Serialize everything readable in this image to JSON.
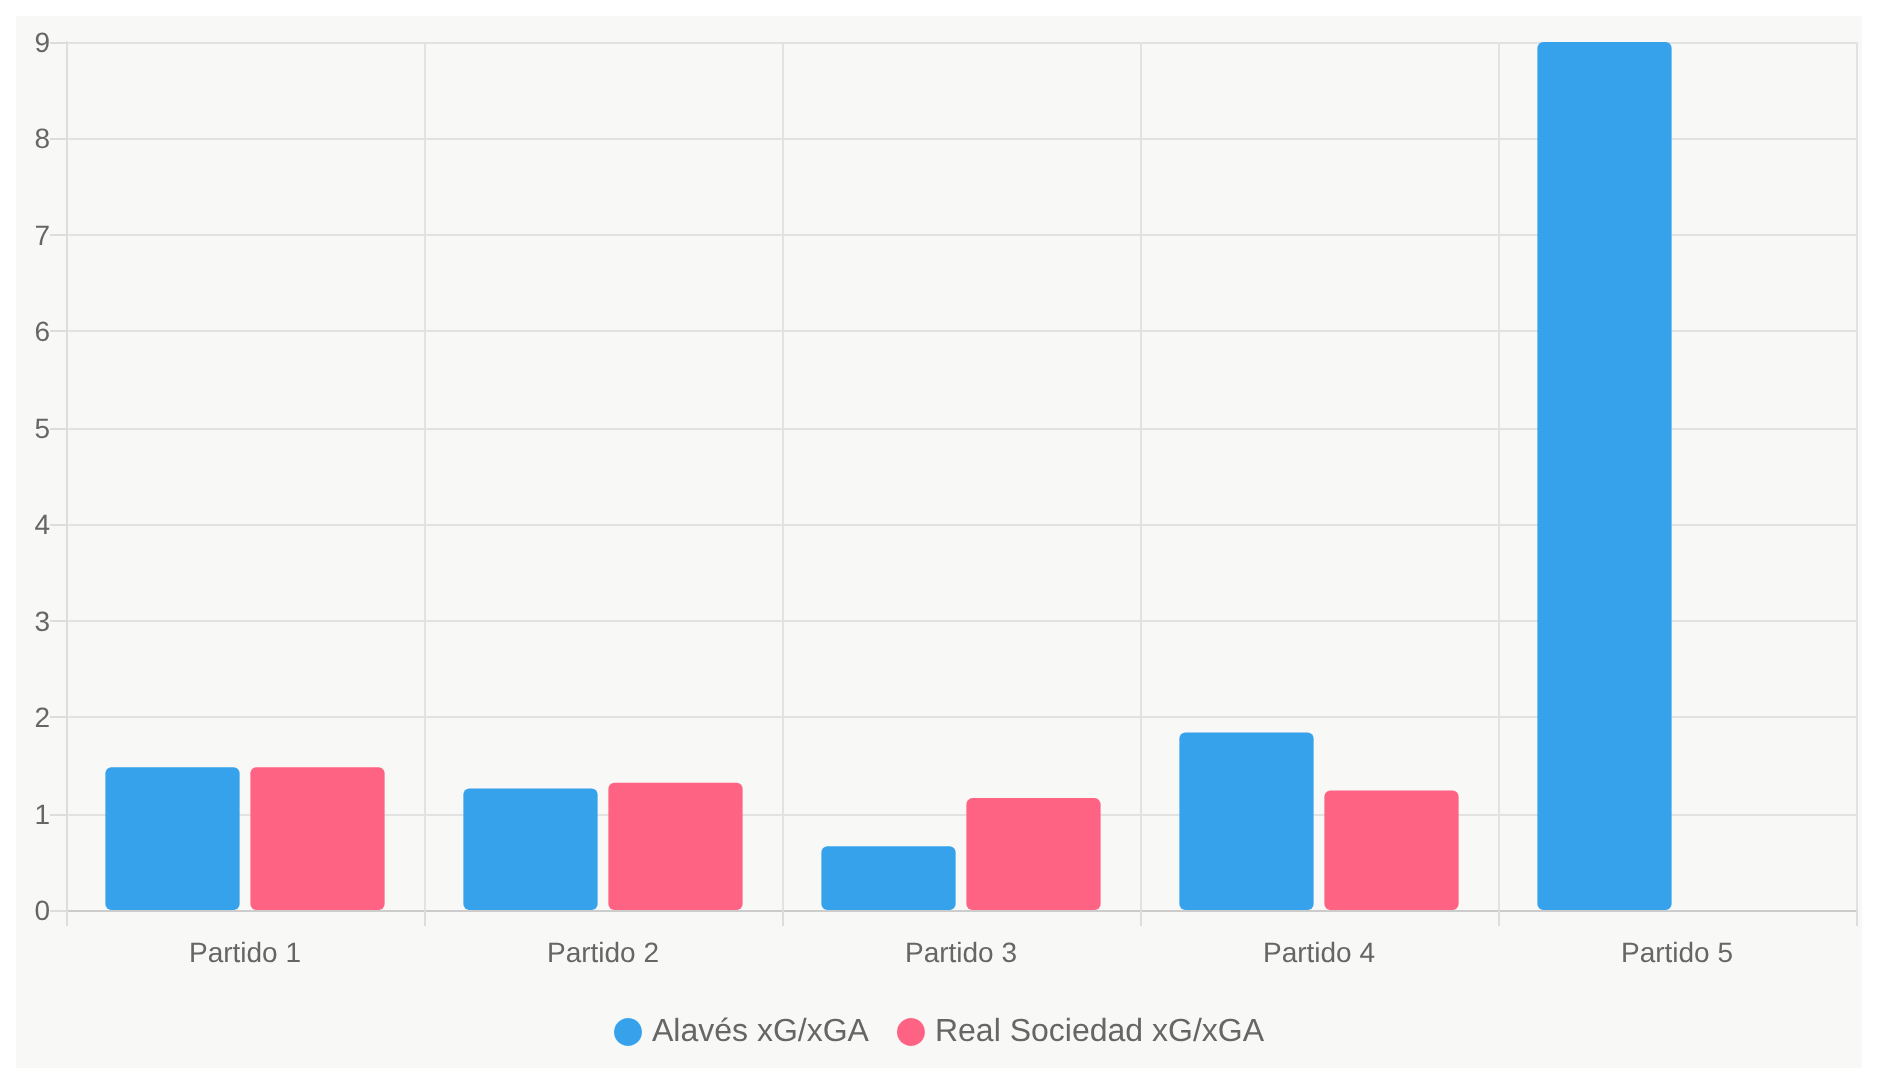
{
  "chart_data": {
    "type": "bar",
    "categories": [
      "Partido 1",
      "Partido 2",
      "Partido 3",
      "Partido 4",
      "Partido 5"
    ],
    "series": [
      {
        "name": "Alavés xG/xGA",
        "color": "#36a2eb",
        "values": [
          1.48,
          1.26,
          0.66,
          1.84,
          9.0
        ]
      },
      {
        "name": "Real Sociedad xG/xGA",
        "color": "#ff6384",
        "values": [
          1.48,
          1.32,
          1.16,
          1.24,
          null
        ]
      }
    ],
    "ylim": [
      0,
      9
    ],
    "yticks": [
      0,
      1,
      2,
      3,
      4,
      5,
      6,
      7,
      8,
      9
    ],
    "grid": true,
    "legend": "bottom"
  }
}
